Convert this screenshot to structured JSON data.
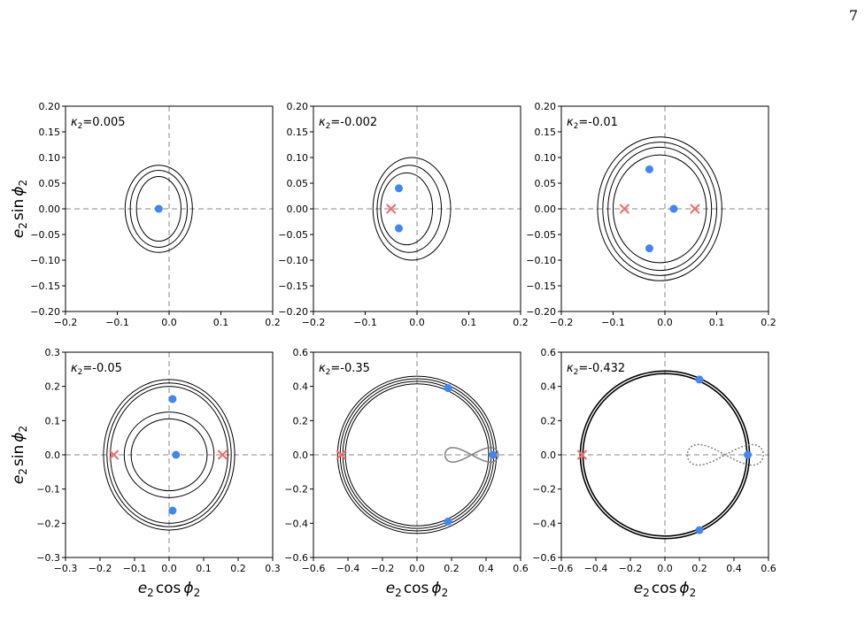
{
  "page": {
    "number": "7"
  },
  "labels": {
    "y_label_base": "e",
    "y_label_sub": "2",
    "y_label_func": "sin",
    "y_label_var": "ϕ",
    "y_label_var_sub": "2",
    "x_label_base": "e",
    "x_label_sub": "2",
    "x_label_func": "cos",
    "x_label_var": "ϕ",
    "x_label_var_sub": "2"
  },
  "colors": {
    "contour": "#000000",
    "separatrix": "#808080",
    "axis_dashed": "#b0b0b0",
    "fixed_point": "#4285f4",
    "saddle": "#f26b6b"
  },
  "chart_data": [
    {
      "type": "contour",
      "kappa_symbol": "κ",
      "kappa_sub": "2",
      "kappa_value": "=0.005",
      "xlim": [
        -0.2,
        0.2
      ],
      "ylim": [
        -0.2,
        0.2
      ],
      "xticks": [
        "−0.2",
        "−0.1",
        "0.0",
        "0.1",
        "0.2"
      ],
      "yticks": [
        "−0.20",
        "−0.15",
        "−0.10",
        "−0.05",
        "0.00",
        "0.05",
        "0.10",
        "0.15",
        "0.20"
      ],
      "xtick_values": [
        -0.2,
        -0.1,
        0,
        0.1,
        0.2
      ],
      "ytick_values": [
        -0.2,
        -0.15,
        -0.1,
        -0.05,
        0,
        0.05,
        0.1,
        0.15,
        0.2
      ],
      "stable_points": [
        [
          -0.02,
          0.0
        ]
      ],
      "saddle_points": [],
      "show_ylabel": true,
      "show_xlabel": false
    },
    {
      "type": "contour",
      "kappa_symbol": "κ",
      "kappa_sub": "2",
      "kappa_value": "=-0.002",
      "xlim": [
        -0.2,
        0.2
      ],
      "ylim": [
        -0.2,
        0.2
      ],
      "xticks": [
        "−0.2",
        "−0.1",
        "0.0",
        "0.1",
        "0.2"
      ],
      "yticks": [
        "−0.20",
        "−0.15",
        "−0.10",
        "−0.05",
        "0.00",
        "0.05",
        "0.10",
        "0.15",
        "0.20"
      ],
      "xtick_values": [
        -0.2,
        -0.1,
        0,
        0.1,
        0.2
      ],
      "ytick_values": [
        -0.2,
        -0.15,
        -0.1,
        -0.05,
        0,
        0.05,
        0.1,
        0.15,
        0.2
      ],
      "stable_points": [
        [
          -0.035,
          0.04
        ],
        [
          -0.035,
          -0.038
        ]
      ],
      "saddle_points": [
        [
          -0.05,
          0.0
        ]
      ],
      "show_ylabel": false,
      "show_xlabel": false
    },
    {
      "type": "contour",
      "kappa_symbol": "κ",
      "kappa_sub": "2",
      "kappa_value": "=-0.01",
      "xlim": [
        -0.2,
        0.2
      ],
      "ylim": [
        -0.2,
        0.2
      ],
      "xticks": [
        "−0.2",
        "−0.1",
        "0.0",
        "0.1",
        "0.2"
      ],
      "yticks": [
        "−0.20",
        "−0.15",
        "−0.10",
        "−0.05",
        "0.00",
        "0.05",
        "0.10",
        "0.15",
        "0.20"
      ],
      "xtick_values": [
        -0.2,
        -0.1,
        0,
        0.1,
        0.2
      ],
      "ytick_values": [
        -0.2,
        -0.15,
        -0.1,
        -0.05,
        0,
        0.05,
        0.1,
        0.15,
        0.2
      ],
      "stable_points": [
        [
          -0.03,
          0.077
        ],
        [
          0.017,
          0.0
        ],
        [
          -0.03,
          -0.077
        ]
      ],
      "saddle_points": [
        [
          -0.078,
          0.0
        ],
        [
          0.058,
          0.0
        ]
      ],
      "show_ylabel": false,
      "show_xlabel": false
    },
    {
      "type": "contour",
      "kappa_symbol": "κ",
      "kappa_sub": "2",
      "kappa_value": "=-0.05",
      "xlim": [
        -0.3,
        0.3
      ],
      "ylim": [
        -0.3,
        0.3
      ],
      "xticks": [
        "−0.3",
        "−0.2",
        "−0.1",
        "0.0",
        "0.1",
        "0.2",
        "0.3"
      ],
      "yticks": [
        "−0.3",
        "−0.2",
        "−0.1",
        "0.0",
        "0.1",
        "0.2",
        "0.3"
      ],
      "xtick_values": [
        -0.3,
        -0.2,
        -0.1,
        0,
        0.1,
        0.2,
        0.3
      ],
      "ytick_values": [
        -0.3,
        -0.2,
        -0.1,
        0,
        0.1,
        0.2,
        0.3
      ],
      "stable_points": [
        [
          0.01,
          0.163
        ],
        [
          0.02,
          0.0
        ],
        [
          0.01,
          -0.163
        ]
      ],
      "saddle_points": [
        [
          -0.16,
          0.0
        ],
        [
          0.155,
          0.0
        ]
      ],
      "show_ylabel": true,
      "show_xlabel": true
    },
    {
      "type": "contour",
      "kappa_symbol": "κ",
      "kappa_sub": "2",
      "kappa_value": "=-0.35",
      "xlim": [
        -0.6,
        0.6
      ],
      "ylim": [
        -0.6,
        0.6
      ],
      "xticks": [
        "−0.6",
        "−0.4",
        "−0.2",
        "0.0",
        "0.2",
        "0.4",
        "0.6"
      ],
      "yticks": [
        "−0.6",
        "−0.4",
        "−0.2",
        "0.0",
        "0.2",
        "0.4",
        "0.6"
      ],
      "xtick_values": [
        -0.6,
        -0.4,
        -0.2,
        0,
        0.2,
        0.4,
        0.6
      ],
      "ytick_values": [
        -0.6,
        -0.4,
        -0.2,
        0,
        0.2,
        0.4,
        0.6
      ],
      "stable_points": [
        [
          0.18,
          0.39
        ],
        [
          0.44,
          0.0
        ],
        [
          0.18,
          -0.39
        ]
      ],
      "saddle_points": [
        [
          -0.44,
          0.0
        ]
      ],
      "show_ylabel": false,
      "show_xlabel": true
    },
    {
      "type": "contour",
      "kappa_symbol": "κ",
      "kappa_sub": "2",
      "kappa_value": "=-0.432",
      "xlim": [
        -0.6,
        0.6
      ],
      "ylim": [
        -0.6,
        0.6
      ],
      "xticks": [
        "−0.6",
        "−0.4",
        "−0.2",
        "0.0",
        "0.2",
        "0.4",
        "0.6"
      ],
      "yticks": [
        "−0.6",
        "−0.4",
        "−0.2",
        "0.0",
        "0.2",
        "0.4",
        "0.6"
      ],
      "xtick_values": [
        -0.6,
        -0.4,
        -0.2,
        0,
        0.2,
        0.4,
        0.6
      ],
      "ytick_values": [
        -0.6,
        -0.4,
        -0.2,
        0,
        0.2,
        0.4,
        0.6
      ],
      "stable_points": [
        [
          0.2,
          0.44
        ],
        [
          0.48,
          0.0
        ],
        [
          0.2,
          -0.44
        ]
      ],
      "saddle_points": [
        [
          -0.48,
          0.0
        ]
      ],
      "show_ylabel": false,
      "show_xlabel": true
    }
  ]
}
